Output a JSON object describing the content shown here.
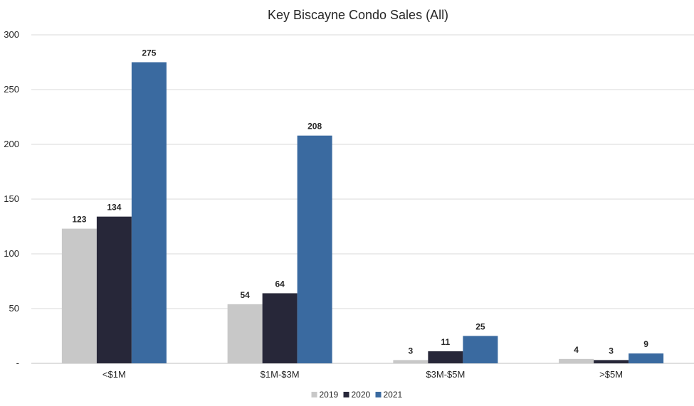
{
  "chart_data": {
    "type": "bar",
    "title": "Key Biscayne Condo Sales (All)",
    "xlabel": "",
    "ylabel": "",
    "categories": [
      "<$1M",
      "$1M-$3M",
      "$3M-$5M",
      ">$5M"
    ],
    "series": [
      {
        "name": "2019",
        "color": "#c8c8c8",
        "values": [
          123,
          54,
          3,
          4
        ]
      },
      {
        "name": "2020",
        "color": "#272739",
        "values": [
          134,
          64,
          11,
          3
        ]
      },
      {
        "name": "2021",
        "color": "#3a6aa0",
        "values": [
          275,
          208,
          25,
          9
        ]
      }
    ],
    "ylim": [
      0,
      300
    ],
    "yticks": [
      0,
      50,
      100,
      150,
      200,
      250,
      300
    ],
    "ytick_labels": [
      "-",
      "50",
      "100",
      "150",
      "200",
      "250",
      "300"
    ],
    "grid": true,
    "data_labels": true,
    "legend_position": "bottom-center"
  }
}
